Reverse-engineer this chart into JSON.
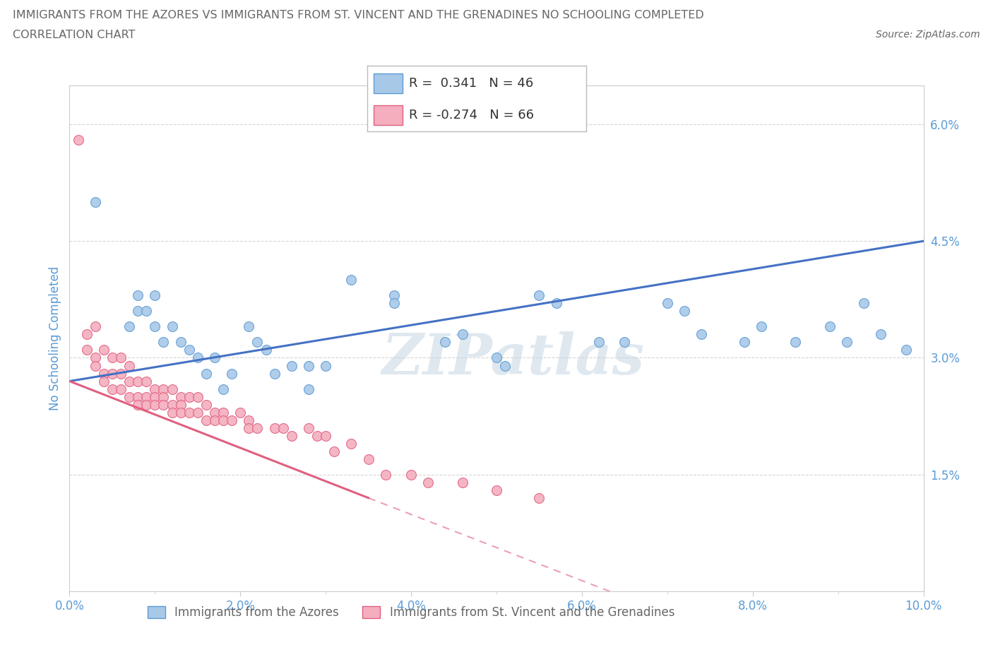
{
  "title": "IMMIGRANTS FROM THE AZORES VS IMMIGRANTS FROM ST. VINCENT AND THE GRENADINES NO SCHOOLING COMPLETED",
  "subtitle": "CORRELATION CHART",
  "source": "Source: ZipAtlas.com",
  "ylabel": "No Schooling Completed",
  "xmin": 0.0,
  "xmax": 0.1,
  "ymin": 0.0,
  "ymax": 0.065,
  "xticks": [
    0.0,
    0.02,
    0.04,
    0.06,
    0.08,
    0.1
  ],
  "yticks": [
    0.0,
    0.015,
    0.03,
    0.045,
    0.06
  ],
  "xtick_labels": [
    "0.0%",
    "",
    "2.0%",
    "",
    "4.0%",
    "",
    "6.0%",
    "",
    "8.0%",
    "",
    "10.0%"
  ],
  "xtick_vals": [
    0.0,
    0.01,
    0.02,
    0.03,
    0.04,
    0.05,
    0.06,
    0.07,
    0.08,
    0.09,
    0.1
  ],
  "ytick_labels_right": [
    "",
    "1.5%",
    "3.0%",
    "4.5%",
    "6.0%"
  ],
  "azores_color": "#A8C8E8",
  "azores_edge_color": "#5B9BD5",
  "svg_color": "#F4AEBE",
  "svg_edge_color": "#E06080",
  "azores_line_color": "#4472C4",
  "svg_line_color": "#E06080",
  "R_azores": 0.341,
  "N_azores": 46,
  "R_svg": -0.274,
  "N_svg": 66,
  "azores_scatter": [
    [
      0.003,
      0.05
    ],
    [
      0.008,
      0.038
    ],
    [
      0.007,
      0.034
    ],
    [
      0.008,
      0.036
    ],
    [
      0.009,
      0.036
    ],
    [
      0.01,
      0.038
    ],
    [
      0.01,
      0.034
    ],
    [
      0.011,
      0.032
    ],
    [
      0.012,
      0.034
    ],
    [
      0.013,
      0.032
    ],
    [
      0.014,
      0.031
    ],
    [
      0.015,
      0.03
    ],
    [
      0.016,
      0.028
    ],
    [
      0.017,
      0.03
    ],
    [
      0.018,
      0.026
    ],
    [
      0.019,
      0.028
    ],
    [
      0.021,
      0.034
    ],
    [
      0.022,
      0.032
    ],
    [
      0.023,
      0.031
    ],
    [
      0.024,
      0.028
    ],
    [
      0.026,
      0.029
    ],
    [
      0.028,
      0.026
    ],
    [
      0.033,
      0.04
    ],
    [
      0.038,
      0.038
    ],
    [
      0.038,
      0.037
    ],
    [
      0.028,
      0.029
    ],
    [
      0.03,
      0.029
    ],
    [
      0.044,
      0.032
    ],
    [
      0.046,
      0.033
    ],
    [
      0.05,
      0.03
    ],
    [
      0.051,
      0.029
    ],
    [
      0.055,
      0.038
    ],
    [
      0.057,
      0.037
    ],
    [
      0.062,
      0.032
    ],
    [
      0.065,
      0.032
    ],
    [
      0.07,
      0.037
    ],
    [
      0.072,
      0.036
    ],
    [
      0.074,
      0.033
    ],
    [
      0.079,
      0.032
    ],
    [
      0.081,
      0.034
    ],
    [
      0.085,
      0.032
    ],
    [
      0.089,
      0.034
    ],
    [
      0.091,
      0.032
    ],
    [
      0.093,
      0.037
    ],
    [
      0.095,
      0.033
    ],
    [
      0.098,
      0.031
    ]
  ],
  "svg_scatter": [
    [
      0.001,
      0.058
    ],
    [
      0.002,
      0.033
    ],
    [
      0.002,
      0.031
    ],
    [
      0.003,
      0.034
    ],
    [
      0.003,
      0.03
    ],
    [
      0.003,
      0.029
    ],
    [
      0.004,
      0.031
    ],
    [
      0.004,
      0.028
    ],
    [
      0.004,
      0.027
    ],
    [
      0.005,
      0.03
    ],
    [
      0.005,
      0.028
    ],
    [
      0.005,
      0.026
    ],
    [
      0.006,
      0.03
    ],
    [
      0.006,
      0.028
    ],
    [
      0.006,
      0.026
    ],
    [
      0.007,
      0.029
    ],
    [
      0.007,
      0.027
    ],
    [
      0.007,
      0.025
    ],
    [
      0.008,
      0.027
    ],
    [
      0.008,
      0.025
    ],
    [
      0.008,
      0.024
    ],
    [
      0.009,
      0.027
    ],
    [
      0.009,
      0.025
    ],
    [
      0.009,
      0.024
    ],
    [
      0.01,
      0.026
    ],
    [
      0.01,
      0.025
    ],
    [
      0.01,
      0.024
    ],
    [
      0.011,
      0.026
    ],
    [
      0.011,
      0.025
    ],
    [
      0.011,
      0.024
    ],
    [
      0.012,
      0.026
    ],
    [
      0.012,
      0.024
    ],
    [
      0.012,
      0.023
    ],
    [
      0.013,
      0.025
    ],
    [
      0.013,
      0.024
    ],
    [
      0.013,
      0.023
    ],
    [
      0.014,
      0.025
    ],
    [
      0.014,
      0.023
    ],
    [
      0.015,
      0.025
    ],
    [
      0.015,
      0.023
    ],
    [
      0.016,
      0.024
    ],
    [
      0.016,
      0.022
    ],
    [
      0.017,
      0.023
    ],
    [
      0.017,
      0.022
    ],
    [
      0.018,
      0.023
    ],
    [
      0.018,
      0.022
    ],
    [
      0.019,
      0.022
    ],
    [
      0.02,
      0.023
    ],
    [
      0.021,
      0.022
    ],
    [
      0.021,
      0.021
    ],
    [
      0.022,
      0.021
    ],
    [
      0.024,
      0.021
    ],
    [
      0.025,
      0.021
    ],
    [
      0.026,
      0.02
    ],
    [
      0.028,
      0.021
    ],
    [
      0.029,
      0.02
    ],
    [
      0.03,
      0.02
    ],
    [
      0.031,
      0.018
    ],
    [
      0.033,
      0.019
    ],
    [
      0.035,
      0.017
    ],
    [
      0.037,
      0.015
    ],
    [
      0.04,
      0.015
    ],
    [
      0.042,
      0.014
    ],
    [
      0.046,
      0.014
    ],
    [
      0.05,
      0.013
    ],
    [
      0.055,
      0.012
    ]
  ],
  "watermark": "ZIPatlas",
  "background_color": "#FFFFFF",
  "grid_color": "#CCCCCC",
  "title_color": "#666666",
  "axis_color": "#5B9BD5",
  "legend_box_color": "#DDDDDD"
}
